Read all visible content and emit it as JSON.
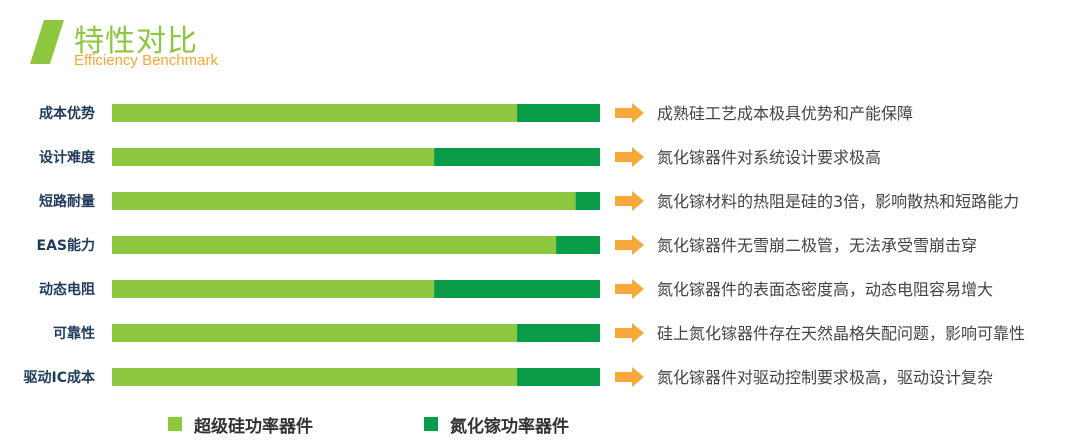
{
  "header": {
    "title": "特性对比",
    "subtitle": "Efficiency Benchmark"
  },
  "colors": {
    "si": "#8dc63f",
    "gan": "#0a9b48",
    "arrow": "#f7a83b",
    "title": "#8dc63f",
    "subtitle": "#f7a83b"
  },
  "chart_data": {
    "type": "bar",
    "orientation": "horizontal",
    "stacked": true,
    "categories": [
      "成本优势",
      "设计难度",
      "短路耐量",
      "EAS能力",
      "动态电阻",
      "可靠性",
      "驱动IC成本"
    ],
    "series": [
      {
        "name": "超级硅功率器件",
        "values": [
          0.83,
          0.66,
          0.95,
          0.91,
          0.66,
          0.83,
          0.83
        ]
      },
      {
        "name": "氮化镓功率器件",
        "values": [
          0.17,
          0.34,
          0.05,
          0.09,
          0.34,
          0.17,
          0.17
        ]
      }
    ],
    "annotations": [
      "成熟硅工艺成本极具优势和产能保障",
      "氮化镓器件对系统设计要求极高",
      "氮化镓材料的热阻是硅的3倍，影响散热和短路能力",
      "氮化镓器件无雪崩二极管，无法承受雪崩击穿",
      "氮化镓器件的表面态密度高，动态电阻容易增大",
      "硅上氮化镓器件存在天然晶格失配问题，影响可靠性",
      "氮化镓器件对驱动控制要求极高，驱动设计复杂"
    ],
    "legend": "bottom",
    "grid": false
  }
}
